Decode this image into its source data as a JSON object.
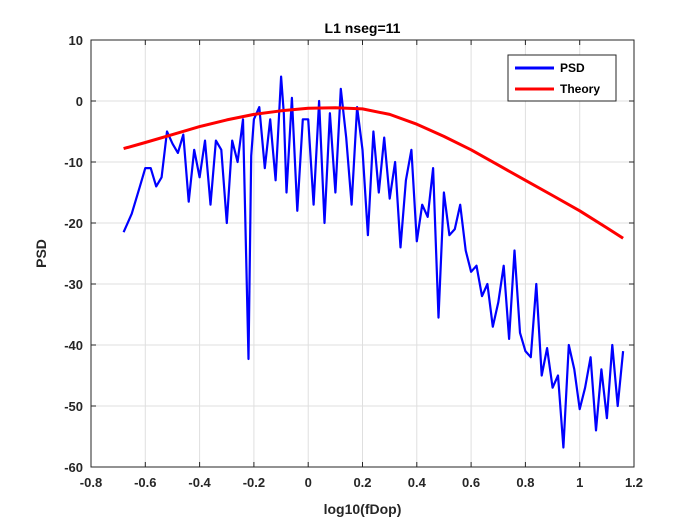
{
  "chart_data": {
    "type": "line",
    "title": "L1 nseg=11",
    "xlabel": "log10(fDop)",
    "ylabel": "PSD",
    "xlim": [
      -0.8,
      1.2
    ],
    "ylim": [
      -60,
      10
    ],
    "xticks": [
      -0.8,
      -0.6,
      -0.4,
      -0.2,
      0,
      0.2,
      0.4,
      0.6,
      0.8,
      1,
      1.2
    ],
    "xtick_labels": [
      "-0.8",
      "-0.6",
      "-0.4",
      "-0.2",
      "0",
      "0.2",
      "0.4",
      "0.6",
      "0.8",
      "1",
      "1.2"
    ],
    "yticks": [
      10,
      0,
      -10,
      -20,
      -30,
      -40,
      -50,
      -60
    ],
    "ytick_labels": [
      "10",
      "0",
      "-10",
      "-20",
      "-30",
      "-40",
      "-50",
      "-60"
    ],
    "grid": true,
    "legend_position": "top-right",
    "series": [
      {
        "name": "PSD",
        "color": "#0000ff",
        "x": [
          -0.68,
          -0.65,
          -0.62,
          -0.6,
          -0.58,
          -0.56,
          -0.54,
          -0.52,
          -0.5,
          -0.48,
          -0.46,
          -0.44,
          -0.42,
          -0.4,
          -0.38,
          -0.36,
          -0.34,
          -0.32,
          -0.3,
          -0.28,
          -0.26,
          -0.24,
          -0.22,
          -0.21,
          -0.2,
          -0.18,
          -0.16,
          -0.14,
          -0.12,
          -0.1,
          -0.09,
          -0.08,
          -0.06,
          -0.04,
          -0.02,
          0,
          0.02,
          0.04,
          0.06,
          0.08,
          0.1,
          0.12,
          0.14,
          0.16,
          0.18,
          0.2,
          0.22,
          0.24,
          0.26,
          0.28,
          0.3,
          0.32,
          0.34,
          0.36,
          0.38,
          0.4,
          0.42,
          0.44,
          0.46,
          0.48,
          0.5,
          0.52,
          0.54,
          0.56,
          0.58,
          0.6,
          0.62,
          0.64,
          0.66,
          0.68,
          0.7,
          0.72,
          0.74,
          0.76,
          0.78,
          0.8,
          0.82,
          0.84,
          0.86,
          0.88,
          0.9,
          0.92,
          0.94,
          0.96,
          0.98,
          1.0,
          1.02,
          1.04,
          1.06,
          1.08,
          1.1,
          1.12,
          1.14,
          1.16
        ],
        "y": [
          -21.5,
          -18.5,
          -14,
          -11,
          -11,
          -14,
          -12.5,
          -5,
          -7,
          -8.5,
          -5.5,
          -16.5,
          -8,
          -12.5,
          -6.5,
          -17,
          -6.5,
          -8,
          -20,
          -6.5,
          -10,
          -3,
          -42.3,
          -9,
          -3,
          -1,
          -11,
          -3,
          -13,
          4,
          -2,
          -15,
          0.5,
          -18,
          -3,
          -3,
          -17,
          0,
          -20,
          -2,
          -15,
          2,
          -6,
          -17,
          -1,
          -8,
          -22,
          -5,
          -15,
          -6,
          -16,
          -10,
          -24,
          -13,
          -8,
          -23,
          -17,
          -19,
          -11,
          -35.5,
          -15,
          -22,
          -21,
          -17,
          -24.5,
          -28,
          -27,
          -32,
          -30,
          -37,
          -33,
          -27,
          -39,
          -24.5,
          -38,
          -41,
          -42,
          -30,
          -45,
          -40.5,
          -47,
          -45,
          -56.8,
          -40,
          -44,
          -50.5,
          -47,
          -42,
          -54,
          -44,
          -52,
          -40,
          -50,
          -41
        ]
      },
      {
        "name": "Theory",
        "color": "#ff0000",
        "x": [
          -0.68,
          -0.6,
          -0.5,
          -0.4,
          -0.3,
          -0.2,
          -0.1,
          0,
          0.1,
          0.2,
          0.3,
          0.4,
          0.5,
          0.6,
          0.7,
          0.8,
          0.9,
          1.0,
          1.1,
          1.16
        ],
        "y": [
          -7.8,
          -6.8,
          -5.5,
          -4.2,
          -3.1,
          -2.2,
          -1.6,
          -1.2,
          -1.1,
          -1.3,
          -2.2,
          -3.8,
          -5.8,
          -8.0,
          -10.5,
          -13.0,
          -15.5,
          -18.0,
          -20.8,
          -22.5
        ]
      }
    ]
  }
}
